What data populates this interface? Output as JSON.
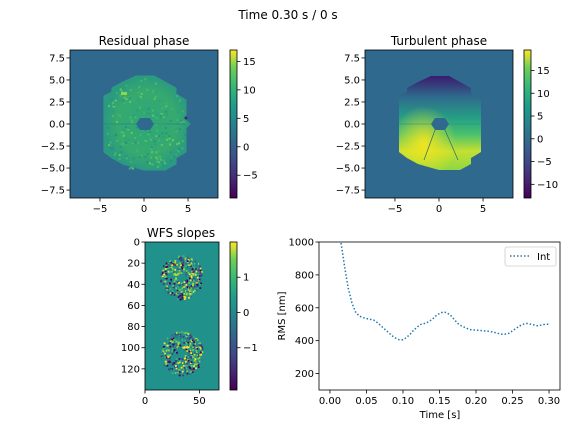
{
  "figure": {
    "suptitle": "Time 0.30 s / 0 s"
  },
  "chart_data": [
    {
      "type": "heatmap",
      "title": "Residual phase",
      "x_ticks": [
        "−5",
        "0",
        "5"
      ],
      "y_ticks": [
        "7.5",
        "5.0",
        "2.5",
        "0.0",
        "−2.5",
        "−5.0",
        "−7.5"
      ],
      "xlim": [
        -8.4,
        8.4
      ],
      "ylim": [
        -8.4,
        8.4
      ],
      "colorbar": {
        "ticks": [
          "15",
          "10",
          "5",
          "0",
          "−5"
        ],
        "range": [
          -9,
          17
        ]
      },
      "colormap": "viridis"
    },
    {
      "type": "heatmap",
      "title": "Turbulent phase",
      "x_ticks": [
        "−5",
        "0",
        "5"
      ],
      "y_ticks": [
        "7.5",
        "5.0",
        "2.5",
        "0.0",
        "−2.5",
        "−5.0",
        "−7.5"
      ],
      "xlim": [
        -8.4,
        8.4
      ],
      "ylim": [
        -8.4,
        8.4
      ],
      "colorbar": {
        "ticks": [
          "15",
          "10",
          "5",
          "0",
          "−5",
          "−10"
        ],
        "range": [
          -13,
          19.5
        ]
      },
      "colormap": "viridis"
    },
    {
      "type": "heatmap",
      "title": "WFS slopes",
      "x_ticks": [
        "0",
        "50"
      ],
      "y_ticks": [
        "0",
        "20",
        "40",
        "60",
        "80",
        "100",
        "120"
      ],
      "xlim": [
        0,
        68
      ],
      "ylim": [
        140,
        0
      ],
      "colorbar": {
        "ticks": [
          "1",
          "0",
          "−1"
        ],
        "range": [
          -2.2,
          2.0
        ]
      },
      "colormap": "viridis"
    },
    {
      "type": "line",
      "title": "",
      "xlabel": "Time [s]",
      "ylabel": "RMS [nm]",
      "xlim": [
        -0.015,
        0.315
      ],
      "ylim": [
        100,
        1000
      ],
      "x_ticks": [
        "0.00",
        "0.05",
        "0.10",
        "0.15",
        "0.20",
        "0.25",
        "0.30"
      ],
      "y_ticks": [
        "1000",
        "800",
        "600",
        "400",
        "200"
      ],
      "legend": {
        "position": "top-right"
      },
      "series": [
        {
          "name": "Int",
          "color": "#1f77b4",
          "x": [
            0.01,
            0.015,
            0.02,
            0.025,
            0.03,
            0.035,
            0.04,
            0.045,
            0.05,
            0.055,
            0.06,
            0.065,
            0.07,
            0.075,
            0.08,
            0.085,
            0.09,
            0.095,
            0.1,
            0.105,
            0.11,
            0.115,
            0.12,
            0.125,
            0.13,
            0.135,
            0.14,
            0.145,
            0.15,
            0.155,
            0.16,
            0.165,
            0.17,
            0.175,
            0.18,
            0.185,
            0.19,
            0.195,
            0.2,
            0.205,
            0.21,
            0.215,
            0.22,
            0.225,
            0.23,
            0.235,
            0.24,
            0.245,
            0.25,
            0.255,
            0.26,
            0.265,
            0.27,
            0.275,
            0.28,
            0.285,
            0.29,
            0.295,
            0.3
          ],
          "y": [
            1120,
            1000,
            850,
            720,
            630,
            575,
            550,
            540,
            535,
            530,
            525,
            510,
            490,
            470,
            450,
            430,
            415,
            405,
            405,
            420,
            440,
            465,
            485,
            500,
            505,
            515,
            530,
            550,
            565,
            575,
            570,
            555,
            530,
            505,
            490,
            480,
            470,
            465,
            465,
            462,
            460,
            458,
            455,
            450,
            445,
            440,
            440,
            445,
            460,
            475,
            490,
            500,
            505,
            500,
            495,
            490,
            495,
            500,
            500
          ]
        }
      ]
    }
  ]
}
